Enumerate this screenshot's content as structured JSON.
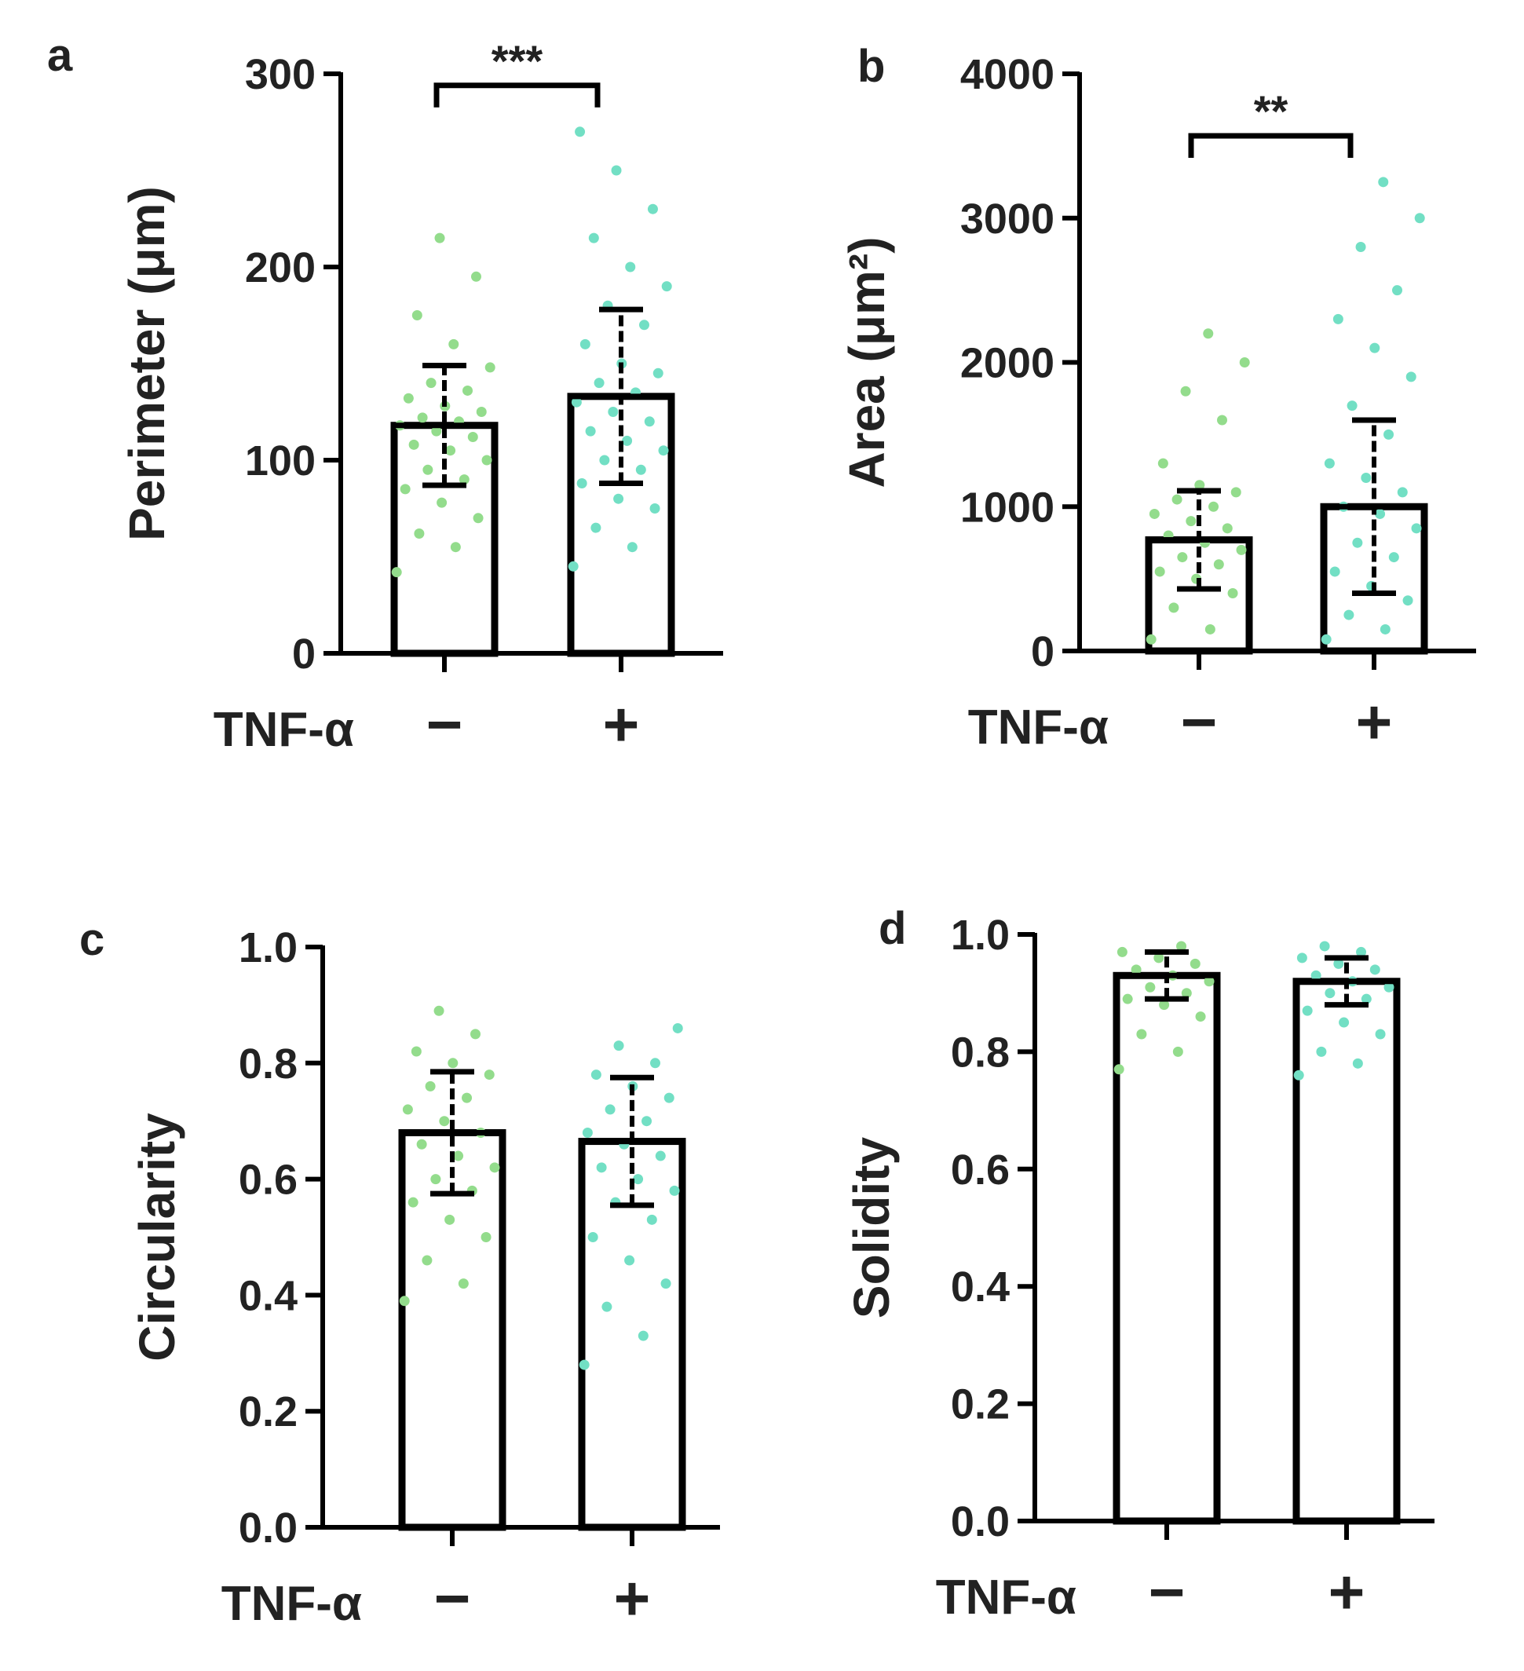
{
  "chart_data": [
    {
      "type": "bar",
      "panel": "a",
      "ylabel": "Perimeter (μm)",
      "xlabel": "TNF-α",
      "categories": [
        "−",
        "+"
      ],
      "values": [
        118,
        133
      ],
      "errors": [
        31,
        45
      ],
      "colors": [
        "#93dc8c",
        "#72dfc4"
      ],
      "points": [
        [
          42,
          55,
          62,
          70,
          78,
          85,
          90,
          95,
          100,
          105,
          108,
          112,
          115,
          118,
          120,
          122,
          125,
          128,
          132,
          136,
          140,
          148,
          160,
          175,
          195,
          215
        ],
        [
          45,
          55,
          65,
          75,
          80,
          88,
          95,
          100,
          105,
          110,
          115,
          120,
          125,
          130,
          135,
          140,
          145,
          150,
          160,
          170,
          180,
          190,
          200,
          215,
          230,
          250,
          270
        ]
      ],
      "significance": "***",
      "ylim": [
        0,
        300
      ],
      "yticks": [
        0,
        100,
        200,
        300
      ]
    },
    {
      "type": "bar",
      "panel": "b",
      "ylabel": "Area (μm²)",
      "xlabel": "TNF-α",
      "categories": [
        "−",
        "+"
      ],
      "values": [
        770,
        1000
      ],
      "errors": [
        340,
        600
      ],
      "colors": [
        "#93dc8c",
        "#72dfc4"
      ],
      "points": [
        [
          80,
          150,
          300,
          400,
          500,
          550,
          600,
          650,
          700,
          750,
          800,
          850,
          900,
          950,
          1000,
          1050,
          1100,
          1150,
          1300,
          1600,
          1800,
          2000,
          2200
        ],
        [
          80,
          150,
          250,
          350,
          450,
          550,
          650,
          750,
          850,
          950,
          1000,
          1100,
          1200,
          1300,
          1500,
          1700,
          1900,
          2100,
          2300,
          2500,
          2800,
          3000,
          3250
        ]
      ],
      "significance": "**",
      "ylim": [
        0,
        4000
      ],
      "yticks": [
        0,
        1000,
        2000,
        3000,
        4000
      ]
    },
    {
      "type": "bar",
      "panel": "c",
      "ylabel": "Circularity",
      "xlabel": "TNF-α",
      "categories": [
        "−",
        "+"
      ],
      "values": [
        0.68,
        0.665
      ],
      "errors": [
        0.105,
        0.11
      ],
      "colors": [
        "#93dc8c",
        "#72dfc4"
      ],
      "points": [
        [
          0.39,
          0.42,
          0.46,
          0.5,
          0.53,
          0.56,
          0.58,
          0.6,
          0.62,
          0.64,
          0.66,
          0.68,
          0.7,
          0.72,
          0.74,
          0.76,
          0.78,
          0.8,
          0.82,
          0.85,
          0.89
        ],
        [
          0.28,
          0.33,
          0.38,
          0.42,
          0.46,
          0.5,
          0.53,
          0.56,
          0.58,
          0.6,
          0.62,
          0.64,
          0.66,
          0.68,
          0.7,
          0.72,
          0.74,
          0.76,
          0.78,
          0.8,
          0.83,
          0.86
        ]
      ],
      "ylim": [
        0,
        1
      ],
      "yticks": [
        {
          "value": 0,
          "label": "0.0"
        },
        0.2,
        0.4,
        0.6,
        0.8,
        {
          "value": 1,
          "label": "1.0"
        }
      ]
    },
    {
      "type": "bar",
      "panel": "d",
      "ylabel": "Solidity",
      "xlabel": "TNF-α",
      "categories": [
        "−",
        "+"
      ],
      "values": [
        0.93,
        0.92
      ],
      "errors": [
        0.04,
        0.04
      ],
      "colors": [
        "#93dc8c",
        "#72dfc4"
      ],
      "points": [
        [
          0.77,
          0.8,
          0.83,
          0.86,
          0.88,
          0.89,
          0.9,
          0.91,
          0.92,
          0.93,
          0.94,
          0.95,
          0.96,
          0.97,
          0.98
        ],
        [
          0.76,
          0.78,
          0.8,
          0.83,
          0.85,
          0.87,
          0.89,
          0.9,
          0.91,
          0.92,
          0.93,
          0.94,
          0.95,
          0.96,
          0.97,
          0.98
        ]
      ],
      "ylim": [
        0,
        1
      ],
      "yticks": [
        {
          "value": 0,
          "label": "0.0"
        },
        0.2,
        0.4,
        0.6,
        0.8,
        {
          "value": 1,
          "label": "1.0"
        }
      ]
    }
  ]
}
